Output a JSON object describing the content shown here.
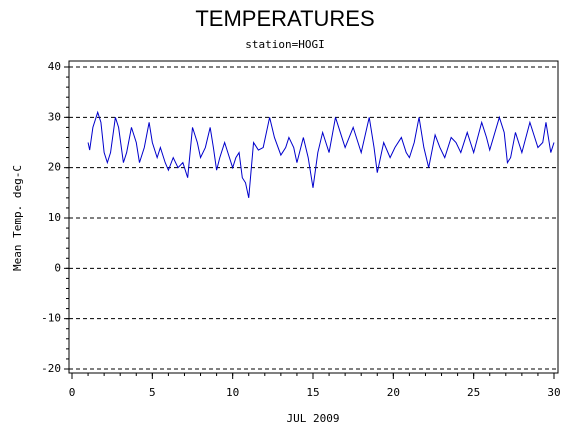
{
  "chart_data": {
    "type": "line",
    "title": "TEMPERATURES",
    "subtitle": "station=HOGI",
    "x_label": "JUL 2009",
    "y_label": "Mean Temp. deg-C",
    "xlim": [
      0,
      30
    ],
    "ylim": [
      -20,
      40
    ],
    "xticks": [
      0,
      5,
      10,
      15,
      20,
      25,
      30
    ],
    "yticks": [
      -20,
      -10,
      0,
      10,
      20,
      30,
      40
    ],
    "grid": true,
    "x": [
      1.0,
      1.1,
      1.3,
      1.6,
      1.8,
      2.0,
      2.2,
      2.4,
      2.7,
      2.9,
      3.2,
      3.4,
      3.7,
      4.0,
      4.2,
      4.5,
      4.8,
      5.0,
      5.3,
      5.5,
      5.8,
      6.0,
      6.3,
      6.6,
      6.9,
      7.2,
      7.5,
      7.8,
      8.0,
      8.3,
      8.6,
      8.8,
      9.0,
      9.2,
      9.5,
      9.8,
      10.0,
      10.2,
      10.4,
      10.6,
      10.8,
      11.0,
      11.3,
      11.6,
      11.9,
      12.3,
      12.6,
      13.0,
      13.3,
      13.5,
      13.8,
      14.0,
      14.4,
      14.7,
      15.0,
      15.3,
      15.6,
      15.8,
      16.0,
      16.4,
      16.7,
      17.0,
      17.5,
      17.8,
      18.0,
      18.5,
      18.8,
      19.0,
      19.4,
      19.8,
      20.1,
      20.5,
      20.8,
      21.0,
      21.3,
      21.6,
      21.9,
      22.2,
      22.6,
      22.9,
      23.2,
      23.6,
      23.9,
      24.2,
      24.6,
      24.8,
      25.0,
      25.5,
      25.8,
      26.0,
      26.6,
      26.9,
      27.1,
      27.3,
      27.6,
      27.8,
      28.0,
      28.5,
      28.8,
      29.0,
      29.3,
      29.5,
      29.8,
      30.0
    ],
    "series": [
      {
        "name": "Mean Temp",
        "color": "#0000cc",
        "values": [
          25,
          23.5,
          28,
          31,
          29,
          23,
          21,
          23,
          30,
          28,
          21,
          23,
          28,
          25,
          21,
          24,
          29,
          25,
          22,
          24,
          21,
          19.5,
          22,
          20,
          21,
          18,
          28,
          25,
          22,
          24,
          28,
          24,
          19.5,
          22,
          25,
          22,
          20,
          22,
          23,
          18,
          17,
          14,
          25,
          23.5,
          24,
          30,
          26,
          22.5,
          24,
          26,
          24,
          21,
          26,
          22,
          16,
          23,
          27,
          25,
          23,
          30,
          27,
          24,
          28,
          25,
          23,
          30,
          24,
          19,
          25,
          22,
          24,
          26,
          23,
          22,
          25,
          30,
          24,
          20,
          26.5,
          24,
          22,
          26,
          25,
          23,
          27,
          25,
          23,
          29,
          26,
          23.5,
          30,
          27,
          21,
          22,
          27,
          25,
          23,
          29,
          26,
          24,
          25,
          29,
          23,
          25
        ]
      }
    ]
  }
}
